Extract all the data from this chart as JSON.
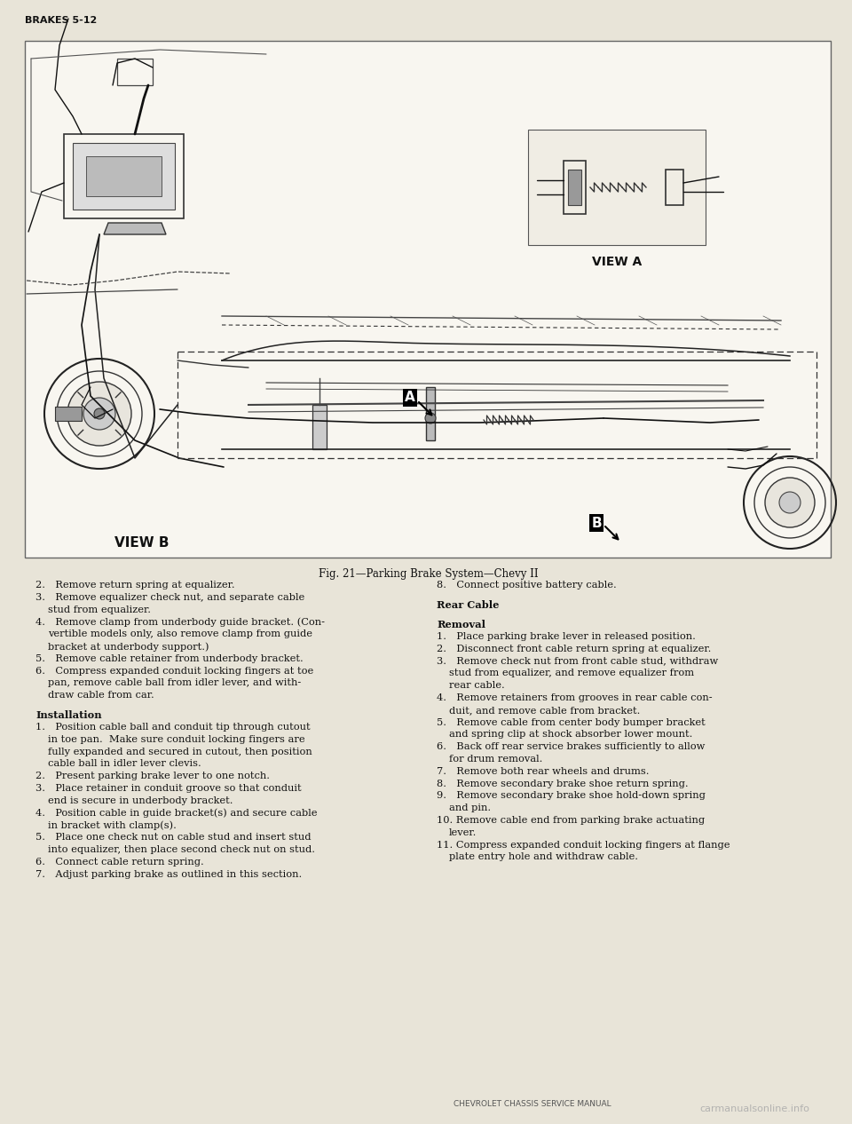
{
  "page_header": "BRAKES 5-12",
  "fig_caption": "Fig. 21—Parking Brake System—Chevy II",
  "view_a_label": "VIEW A",
  "view_b_label": "VIEW B",
  "footer_center": "CHEVROLET CHASSIS SERVICE MANUAL",
  "footer_watermark": "carmanualsonline.info",
  "bg_color": "#e8e4d8",
  "box_bg": "#f0ede4",
  "text_color": "#111111",
  "border_color": "#555555",
  "diagram_bg": "#f7f5ef",
  "left_col": [
    {
      "text": "2. Remove return spring at equalizer.",
      "bold": false,
      "indent": 0
    },
    {
      "text": "3. Remove equalizer check nut, and separate cable",
      "bold": false,
      "indent": 0
    },
    {
      "text": "stud from equalizer.",
      "bold": false,
      "indent": 1
    },
    {
      "text": "4. Remove clamp from underbody guide bracket. (Con-",
      "bold": false,
      "indent": 0
    },
    {
      "text": "vertible models only, also remove clamp from guide",
      "bold": false,
      "indent": 1
    },
    {
      "text": "bracket at underbody support.)",
      "bold": false,
      "indent": 1
    },
    {
      "text": "5. Remove cable retainer from underbody bracket.",
      "bold": false,
      "indent": 0
    },
    {
      "text": "6. Compress expanded conduit locking fingers at toe",
      "bold": false,
      "indent": 0
    },
    {
      "text": "pan, remove cable ball from idler lever, and with-",
      "bold": false,
      "indent": 1
    },
    {
      "text": "draw cable from car.",
      "bold": false,
      "indent": 1
    },
    {
      "text": "",
      "bold": false,
      "indent": 0
    },
    {
      "text": "Installation",
      "bold": true,
      "indent": 0
    },
    {
      "text": "1. Position cable ball and conduit tip through cutout",
      "bold": false,
      "indent": 0
    },
    {
      "text": "in toe pan.  Make sure conduit locking fingers are",
      "bold": false,
      "indent": 1
    },
    {
      "text": "fully expanded and secured in cutout, then position",
      "bold": false,
      "indent": 1
    },
    {
      "text": "cable ball in idler lever clevis.",
      "bold": false,
      "indent": 1
    },
    {
      "text": "2. Present parking brake lever to one notch.",
      "bold": false,
      "indent": 0
    },
    {
      "text": "3. Place retainer in conduit groove so that conduit",
      "bold": false,
      "indent": 0
    },
    {
      "text": "end is secure in underbody bracket.",
      "bold": false,
      "indent": 1
    },
    {
      "text": "4. Position cable in guide bracket(s) and secure cable",
      "bold": false,
      "indent": 0
    },
    {
      "text": "in bracket with clamp(s).",
      "bold": false,
      "indent": 1
    },
    {
      "text": "5. Place one check nut on cable stud and insert stud",
      "bold": false,
      "indent": 0
    },
    {
      "text": "into equalizer, then place second check nut on stud.",
      "bold": false,
      "indent": 1
    },
    {
      "text": "6. Connect cable return spring.",
      "bold": false,
      "indent": 0
    },
    {
      "text": "7. Adjust parking brake as outlined in this section.",
      "bold": false,
      "indent": 0
    }
  ],
  "right_col": [
    {
      "text": "8. Connect positive battery cable.",
      "bold": false,
      "indent": 0
    },
    {
      "text": "",
      "bold": false,
      "indent": 0
    },
    {
      "text": "Rear Cable",
      "bold": true,
      "indent": 0
    },
    {
      "text": "",
      "bold": false,
      "indent": 0
    },
    {
      "text": "Removal",
      "bold": true,
      "indent": 0
    },
    {
      "text": "1. Place parking brake lever in released position.",
      "bold": false,
      "indent": 0
    },
    {
      "text": "2. Disconnect front cable return spring at equalizer.",
      "bold": false,
      "indent": 0
    },
    {
      "text": "3. Remove check nut from front cable stud, withdraw",
      "bold": false,
      "indent": 0
    },
    {
      "text": "stud from equalizer, and remove equalizer from",
      "bold": false,
      "indent": 1
    },
    {
      "text": "rear cable.",
      "bold": false,
      "indent": 1
    },
    {
      "text": "4. Remove retainers from grooves in rear cable con-",
      "bold": false,
      "indent": 0
    },
    {
      "text": "duit, and remove cable from bracket.",
      "bold": false,
      "indent": 1
    },
    {
      "text": "5. Remove cable from center body bumper bracket",
      "bold": false,
      "indent": 0
    },
    {
      "text": "and spring clip at shock absorber lower mount.",
      "bold": false,
      "indent": 1
    },
    {
      "text": "6. Back off rear service brakes sufficiently to allow",
      "bold": false,
      "indent": 0
    },
    {
      "text": "for drum removal.",
      "bold": false,
      "indent": 1
    },
    {
      "text": "7. Remove both rear wheels and drums.",
      "bold": false,
      "indent": 0
    },
    {
      "text": "8. Remove secondary brake shoe return spring.",
      "bold": false,
      "indent": 0
    },
    {
      "text": "9. Remove secondary brake shoe hold-down spring",
      "bold": false,
      "indent": 0
    },
    {
      "text": "and pin.",
      "bold": false,
      "indent": 1
    },
    {
      "text": "10. Remove cable end from parking brake actuating",
      "bold": false,
      "indent": 0
    },
    {
      "text": "lever.",
      "bold": false,
      "indent": 1
    },
    {
      "text": "11. Compress expanded conduit locking fingers at flange",
      "bold": false,
      "indent": 0
    },
    {
      "text": "plate entry hole and withdraw cable.",
      "bold": false,
      "indent": 1
    }
  ]
}
